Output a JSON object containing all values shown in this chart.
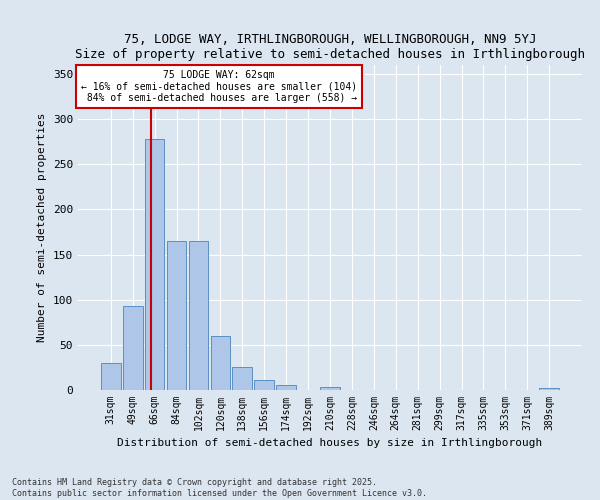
{
  "title": "75, LODGE WAY, IRTHLINGBOROUGH, WELLINGBOROUGH, NN9 5YJ",
  "subtitle": "Size of property relative to semi-detached houses in Irthlingborough",
  "xlabel": "Distribution of semi-detached houses by size in Irthlingborough",
  "ylabel": "Number of semi-detached properties",
  "categories": [
    "31sqm",
    "49sqm",
    "66sqm",
    "84sqm",
    "102sqm",
    "120sqm",
    "138sqm",
    "156sqm",
    "174sqm",
    "192sqm",
    "210sqm",
    "228sqm",
    "246sqm",
    "264sqm",
    "281sqm",
    "299sqm",
    "317sqm",
    "335sqm",
    "353sqm",
    "371sqm",
    "389sqm"
  ],
  "values": [
    30,
    93,
    278,
    165,
    165,
    60,
    25,
    11,
    5,
    0,
    3,
    0,
    0,
    0,
    0,
    0,
    0,
    0,
    0,
    0,
    2
  ],
  "bar_color": "#aec6e8",
  "bar_edge_color": "#5a8fc2",
  "smaller_pct": 16,
  "smaller_count": 104,
  "larger_pct": 84,
  "larger_count": 558,
  "ylim": [
    0,
    360
  ],
  "yticks": [
    0,
    50,
    100,
    150,
    200,
    250,
    300,
    350
  ],
  "background_color": "#dce6f0",
  "footer": "Contains HM Land Registry data © Crown copyright and database right 2025.\nContains public sector information licensed under the Open Government Licence v3.0."
}
